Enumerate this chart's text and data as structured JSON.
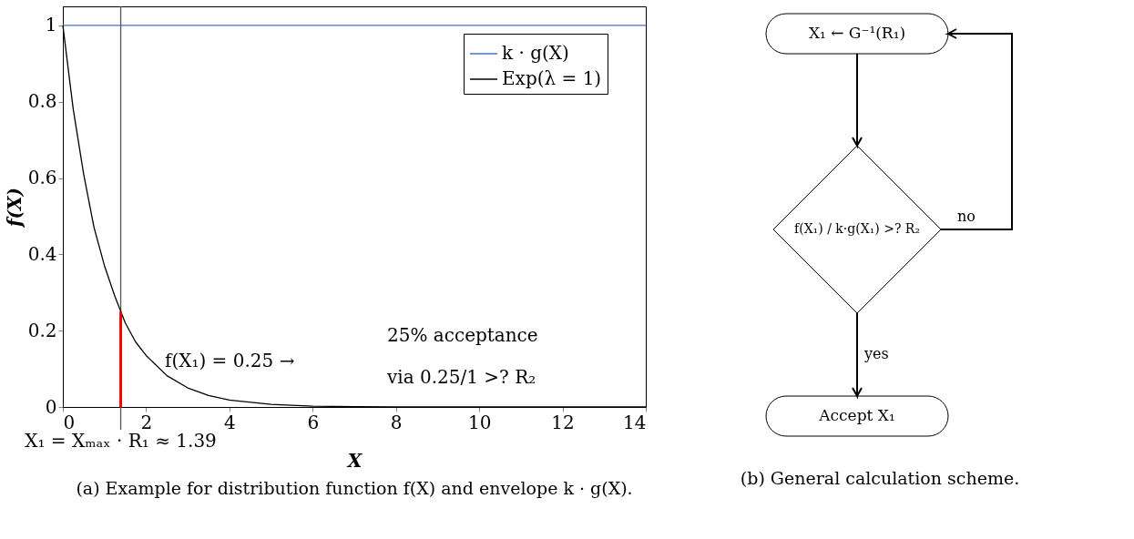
{
  "chart_data": [
    {
      "type": "line",
      "title": "(a) Example for distribution function f(X) and envelope k · g(X).",
      "xlabel": "X",
      "ylabel": "f(X)",
      "xlim": [
        0,
        14
      ],
      "ylim": [
        0,
        1.05
      ],
      "xticks": [
        0,
        2,
        4,
        6,
        8,
        10,
        12,
        14
      ],
      "yticks": [
        0,
        0.2,
        0.4,
        0.6,
        0.8,
        1
      ],
      "grid": false,
      "legend": "top right",
      "series": [
        {
          "name": "k · g(X)",
          "color": "#4472c4",
          "x": [
            0,
            14
          ],
          "values": [
            1,
            1
          ]
        },
        {
          "name": "Exp(λ = 1)",
          "color": "#000000",
          "x": [
            0,
            0.25,
            0.5,
            0.75,
            1,
            1.25,
            1.5,
            1.75,
            2,
            2.5,
            3,
            3.5,
            4,
            5,
            6,
            7,
            8,
            10,
            12,
            14
          ],
          "values": [
            1,
            0.78,
            0.61,
            0.47,
            0.37,
            0.29,
            0.22,
            0.17,
            0.135,
            0.082,
            0.05,
            0.03,
            0.018,
            0.007,
            0.002,
            0.001,
            0,
            0,
            0,
            0
          ]
        },
        {
          "color": "#ff0000",
          "x": [
            1.39,
            1.39
          ],
          "values": [
            0,
            0.25
          ]
        }
      ],
      "ref_lines": [
        {
          "axis": "x",
          "value": 1.39,
          "label": "X₁ = Xₘₐₓ · R₁ ≈ 1.39",
          "color": "#555555"
        }
      ],
      "annotations": [
        "f(X₁) = 0.25 →",
        "25% acceptance",
        "via 0.25/1 >? R₂"
      ]
    },
    {
      "type": "other",
      "title": "(b) General calculation scheme.",
      "annotations": [
        "X₁ ← G⁻¹(R₁)",
        "f(X₁) / k·g(X₁) >? R₂",
        "no",
        "yes",
        "Accept X₁"
      ]
    }
  ]
}
